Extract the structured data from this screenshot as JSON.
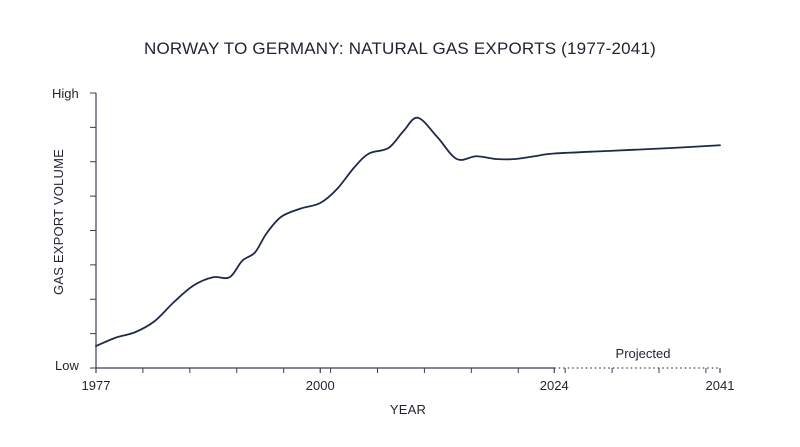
{
  "chart_data": {
    "type": "line",
    "title": "NORWAY TO GERMANY: NATURAL GAS EXPORTS (1977-2041)",
    "xlabel": "YEAR",
    "ylabel": "GAS EXPORT VOLUME",
    "y_tick_labels": {
      "top": "High",
      "bottom": "Low"
    },
    "x_tick_labels": [
      "1977",
      "2000",
      "2024",
      "2041"
    ],
    "x_ticks": [
      1977,
      2000,
      2024,
      2041
    ],
    "xlim": [
      1977,
      2041
    ],
    "ylim": [
      0,
      100
    ],
    "projected_label": "Projected",
    "projected_range": [
      2024,
      2041
    ],
    "line_color": "#1f2a4a",
    "axis_color": "#3a3f55",
    "series": [
      {
        "x": [
          1977,
          1979,
          1981,
          1983,
          1985,
          1987,
          1989,
          1990.7,
          1992,
          1993.3,
          1994.5,
          1996,
          1998,
          2000,
          2001.7,
          2003.5,
          2005,
          2007,
          2008.5,
          2010,
          2012,
          2014,
          2016,
          2018,
          2020,
          2022,
          2024,
          2030,
          2036,
          2041
        ],
        "y": [
          8,
          11,
          13,
          17,
          24,
          30,
          33,
          33,
          39,
          42,
          49,
          55,
          58,
          60,
          65,
          73,
          78,
          80,
          86,
          91,
          84,
          76,
          77,
          76,
          76,
          77,
          78,
          79,
          80,
          81
        ]
      }
    ]
  }
}
